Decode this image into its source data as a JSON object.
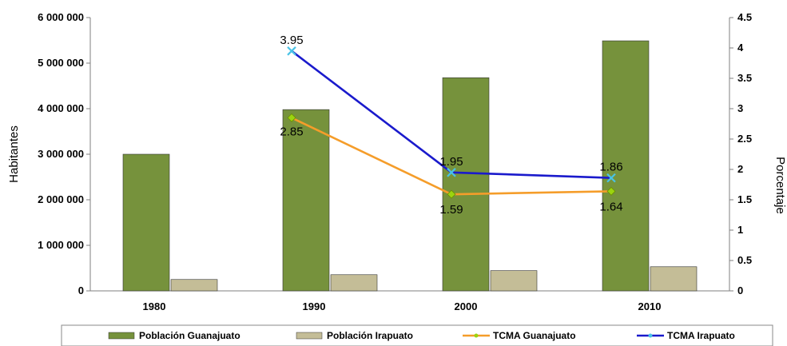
{
  "chart_data": {
    "type": "bar",
    "categories": [
      "1980",
      "1990",
      "2000",
      "2010"
    ],
    "series": [
      {
        "name": "Población Guanajuato",
        "kind": "bar",
        "axis": "left",
        "values": [
          3000000,
          3980000,
          4680000,
          5490000
        ],
        "color": "#76923c"
      },
      {
        "name": "Población Irapuato",
        "kind": "bar",
        "axis": "left",
        "values": [
          250000,
          355000,
          445000,
          530000
        ],
        "color": "#c4bd97"
      },
      {
        "name": "TCMA Guanajuato",
        "kind": "line",
        "axis": "right",
        "values": [
          null,
          2.85,
          1.59,
          1.64
        ],
        "labels": [
          "",
          "2.85",
          "1.59",
          "1.64"
        ],
        "color": "#f59d2a",
        "marker_color": "#9bd40f"
      },
      {
        "name": "TCMA Irapuato",
        "kind": "line",
        "axis": "right",
        "values": [
          null,
          3.95,
          1.95,
          1.86
        ],
        "labels": [
          "",
          "3.95",
          "1.95",
          "1.86"
        ],
        "color": "#1a1acc",
        "marker_color": "#49c3e6"
      }
    ],
    "ylabel": "Habitantes",
    "y2label": "Porcentaje",
    "ylim": [
      0,
      6000000
    ],
    "y2lim": [
      0,
      4.5
    ],
    "yticks": [
      "0",
      "1 000 000",
      "2 000 000",
      "3 000 000",
      "4 000 000",
      "5 000 000",
      "6 000 000"
    ],
    "y2ticks": [
      "0",
      "0.5",
      "1",
      "1.5",
      "2",
      "2.5",
      "3",
      "3.5",
      "4",
      "4.5"
    ],
    "grid": false,
    "legend": "bottom"
  }
}
